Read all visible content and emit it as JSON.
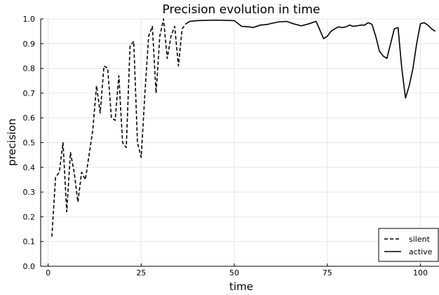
{
  "chart_data": {
    "type": "line",
    "title": "Precision evolution in time",
    "xlabel": "time",
    "ylabel": "precision",
    "xlim": [
      -2,
      105
    ],
    "ylim": [
      0,
      1.0
    ],
    "xticks": [
      0,
      25,
      50,
      75,
      100
    ],
    "yticks": [
      0.0,
      0.1,
      0.2,
      0.3,
      0.4,
      0.5,
      0.6,
      0.7,
      0.8,
      0.9,
      1.0
    ],
    "xtick_labels": [
      "0",
      "25",
      "50",
      "75",
      "100"
    ],
    "ytick_labels": [
      "0.0",
      "0.1",
      "0.2",
      "0.3",
      "0.4",
      "0.5",
      "0.6",
      "0.7",
      "0.8",
      "0.9",
      "1.0"
    ],
    "grid": true,
    "legend_position": "bottom-right",
    "series": [
      {
        "name": "silent",
        "style": "dashed",
        "color": "#000000",
        "x": [
          1,
          2,
          3,
          4,
          5,
          6,
          7,
          8,
          9,
          10,
          11,
          12,
          13,
          14,
          15,
          16,
          17,
          18,
          19,
          20,
          21,
          22,
          23,
          24,
          25,
          26,
          27,
          28,
          29,
          30,
          31,
          32,
          33,
          34,
          35,
          36,
          37
        ],
        "y": [
          0.12,
          0.36,
          0.38,
          0.5,
          0.22,
          0.46,
          0.38,
          0.26,
          0.38,
          0.35,
          0.45,
          0.55,
          0.73,
          0.62,
          0.81,
          0.8,
          0.6,
          0.59,
          0.77,
          0.5,
          0.48,
          0.89,
          0.91,
          0.5,
          0.44,
          0.7,
          0.93,
          0.97,
          0.7,
          0.93,
          1.0,
          0.84,
          0.93,
          0.97,
          0.81,
          0.96,
          0.98
        ]
      },
      {
        "name": "active",
        "style": "solid",
        "color": "#000000",
        "x": [
          37,
          38,
          40,
          45,
          50,
          52,
          54,
          55,
          57,
          59,
          60,
          62,
          64,
          66,
          68,
          70,
          72,
          74,
          75,
          76,
          77,
          78,
          79,
          80,
          81,
          82,
          83,
          84,
          85,
          86,
          87,
          88,
          89,
          90,
          91,
          92,
          93,
          94,
          95,
          96,
          97,
          98,
          99,
          100,
          101,
          102,
          103,
          104
        ],
        "y": [
          0.98,
          0.99,
          0.993,
          0.995,
          0.993,
          0.97,
          0.968,
          0.965,
          0.975,
          0.978,
          0.982,
          0.988,
          0.99,
          0.98,
          0.972,
          0.98,
          0.99,
          0.92,
          0.93,
          0.95,
          0.96,
          0.968,
          0.965,
          0.968,
          0.975,
          0.97,
          0.972,
          0.975,
          0.975,
          0.985,
          0.978,
          0.93,
          0.87,
          0.85,
          0.84,
          0.9,
          0.96,
          0.965,
          0.8,
          0.68,
          0.73,
          0.8,
          0.9,
          0.98,
          0.985,
          0.975,
          0.96,
          0.95
        ]
      }
    ]
  }
}
